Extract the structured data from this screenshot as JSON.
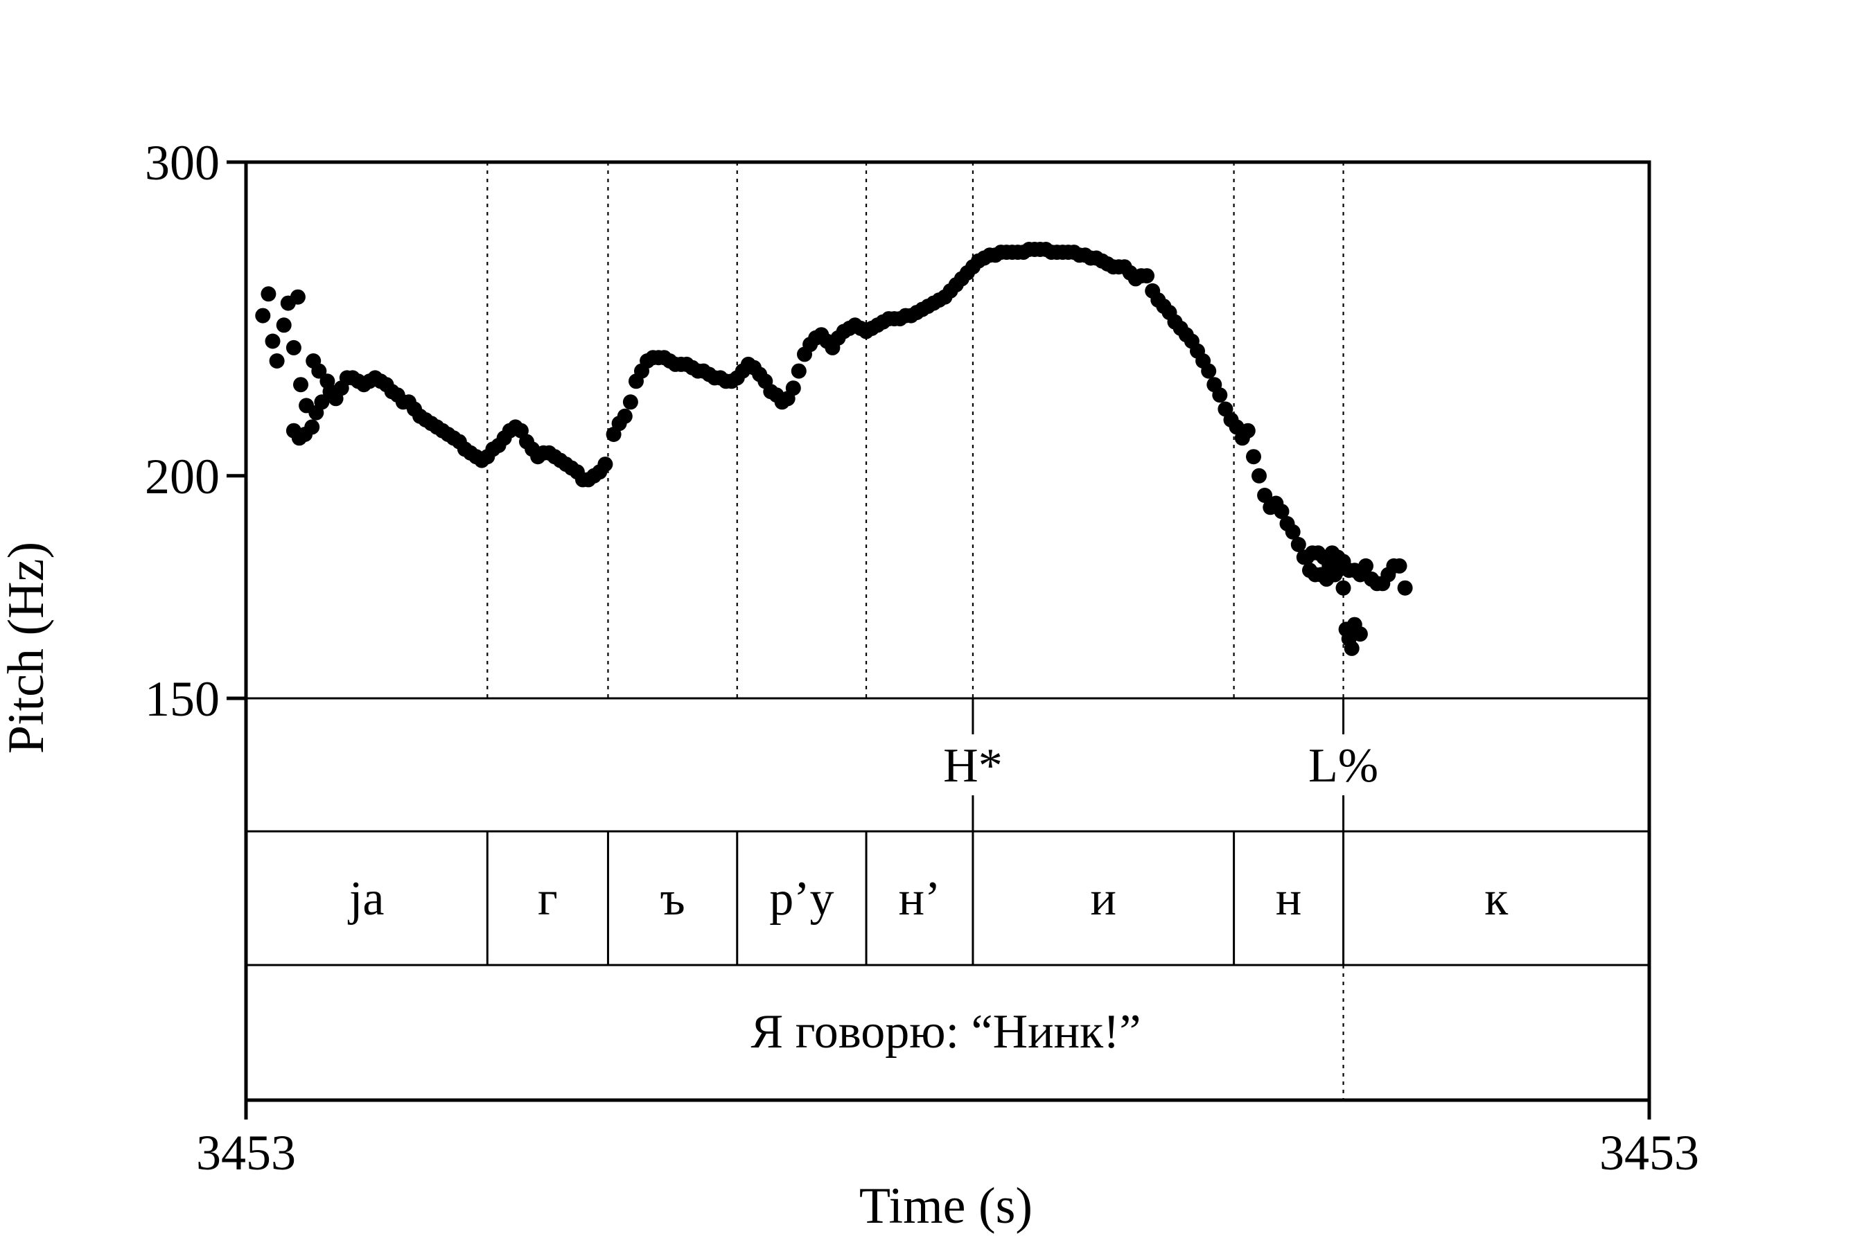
{
  "chart_data": {
    "type": "scatter",
    "xlabel": "Time (s)",
    "ylabel": "Pitch (Hz)",
    "x_tick_labels": [
      "3453",
      "3453"
    ],
    "ylim": [
      150,
      300
    ],
    "y_ticks": [
      150,
      200,
      300
    ],
    "y_tick_labels": [
      "150",
      "200",
      "300"
    ],
    "log_scale_y": true,
    "x_range_fraction": [
      0,
      1
    ],
    "boundaries": [
      0.172,
      0.258,
      0.35,
      0.442,
      0.518,
      0.704,
      0.782
    ],
    "tiers": {
      "tones": [
        {
          "label": "H*",
          "t": 0.518
        },
        {
          "label": "L%",
          "t": 0.782
        }
      ],
      "segments": [
        {
          "label": "ja",
          "start": 0.0,
          "end": 0.172
        },
        {
          "label": "г",
          "start": 0.172,
          "end": 0.258
        },
        {
          "label": "ъ",
          "start": 0.258,
          "end": 0.35
        },
        {
          "label": "р’у",
          "start": 0.35,
          "end": 0.442
        },
        {
          "label": "н’",
          "start": 0.442,
          "end": 0.518
        },
        {
          "label": "и",
          "start": 0.518,
          "end": 0.704
        },
        {
          "label": "н",
          "start": 0.704,
          "end": 0.782
        },
        {
          "label": "к",
          "start": 0.782,
          "end": 1.0
        }
      ],
      "phrase": {
        "label": "Я говорю: “Нинк!”",
        "start": 0.0,
        "end": 1.0
      }
    },
    "series": [
      {
        "points": [
          [
            0.012,
            246
          ],
          [
            0.016,
            253
          ],
          [
            0.019,
            238
          ],
          [
            0.022,
            232
          ],
          [
            0.027,
            243
          ],
          [
            0.03,
            250
          ],
          [
            0.034,
            236
          ],
          [
            0.037,
            252
          ],
          [
            0.039,
            225
          ],
          [
            0.043,
            219
          ],
          [
            0.048,
            232
          ],
          [
            0.052,
            229
          ],
          [
            0.058,
            226
          ],
          [
            0.034,
            212
          ],
          [
            0.038,
            210
          ],
          [
            0.042,
            211
          ],
          [
            0.047,
            213
          ],
          [
            0.05,
            217
          ],
          [
            0.054,
            220
          ],
          [
            0.06,
            223
          ],
          [
            0.064,
            221
          ],
          [
            0.068,
            224
          ],
          [
            0.072,
            227
          ],
          [
            0.076,
            227
          ],
          [
            0.08,
            226
          ],
          [
            0.084,
            225
          ],
          [
            0.088,
            226
          ],
          [
            0.092,
            227
          ],
          [
            0.096,
            226
          ],
          [
            0.1,
            225
          ],
          [
            0.104,
            223
          ],
          [
            0.108,
            222
          ],
          [
            0.112,
            220
          ],
          [
            0.116,
            220
          ],
          [
            0.12,
            218
          ],
          [
            0.124,
            216
          ],
          [
            0.128,
            215
          ],
          [
            0.132,
            214
          ],
          [
            0.136,
            213
          ],
          [
            0.14,
            212
          ],
          [
            0.144,
            211
          ],
          [
            0.148,
            210
          ],
          [
            0.152,
            209
          ],
          [
            0.156,
            207
          ],
          [
            0.16,
            206
          ],
          [
            0.164,
            205
          ],
          [
            0.168,
            204
          ],
          [
            0.172,
            205
          ],
          [
            0.176,
            207
          ],
          [
            0.18,
            208
          ],
          [
            0.184,
            210
          ],
          [
            0.188,
            212
          ],
          [
            0.192,
            213
          ],
          [
            0.196,
            212
          ],
          [
            0.2,
            209
          ],
          [
            0.204,
            207
          ],
          [
            0.208,
            205
          ],
          [
            0.212,
            206
          ],
          [
            0.216,
            206
          ],
          [
            0.22,
            205
          ],
          [
            0.224,
            204
          ],
          [
            0.228,
            203
          ],
          [
            0.232,
            202
          ],
          [
            0.236,
            201
          ],
          [
            0.24,
            199
          ],
          [
            0.244,
            199
          ],
          [
            0.248,
            200
          ],
          [
            0.252,
            201
          ],
          [
            0.256,
            203
          ],
          [
            0.262,
            211
          ],
          [
            0.266,
            214
          ],
          [
            0.27,
            216
          ],
          [
            0.274,
            220
          ],
          [
            0.278,
            226
          ],
          [
            0.282,
            229
          ],
          [
            0.286,
            232
          ],
          [
            0.29,
            233
          ],
          [
            0.294,
            233
          ],
          [
            0.298,
            233
          ],
          [
            0.302,
            232
          ],
          [
            0.306,
            231
          ],
          [
            0.31,
            231
          ],
          [
            0.314,
            231
          ],
          [
            0.318,
            230
          ],
          [
            0.322,
            229
          ],
          [
            0.326,
            229
          ],
          [
            0.33,
            228
          ],
          [
            0.334,
            227
          ],
          [
            0.338,
            227
          ],
          [
            0.342,
            226
          ],
          [
            0.346,
            226
          ],
          [
            0.35,
            227
          ],
          [
            0.354,
            229
          ],
          [
            0.358,
            231
          ],
          [
            0.362,
            230
          ],
          [
            0.366,
            228
          ],
          [
            0.37,
            226
          ],
          [
            0.374,
            223
          ],
          [
            0.378,
            222
          ],
          [
            0.382,
            220
          ],
          [
            0.386,
            221
          ],
          [
            0.39,
            224
          ],
          [
            0.394,
            229
          ],
          [
            0.398,
            234
          ],
          [
            0.402,
            237
          ],
          [
            0.406,
            239
          ],
          [
            0.41,
            240
          ],
          [
            0.414,
            238
          ],
          [
            0.418,
            236
          ],
          [
            0.422,
            239
          ],
          [
            0.426,
            241
          ],
          [
            0.43,
            242
          ],
          [
            0.434,
            243
          ],
          [
            0.438,
            242
          ],
          [
            0.442,
            241
          ],
          [
            0.446,
            242
          ],
          [
            0.45,
            243
          ],
          [
            0.454,
            244
          ],
          [
            0.458,
            245
          ],
          [
            0.462,
            245
          ],
          [
            0.466,
            245
          ],
          [
            0.47,
            246
          ],
          [
            0.474,
            246
          ],
          [
            0.478,
            247
          ],
          [
            0.482,
            248
          ],
          [
            0.486,
            249
          ],
          [
            0.49,
            250
          ],
          [
            0.494,
            251
          ],
          [
            0.498,
            252
          ],
          [
            0.502,
            254
          ],
          [
            0.506,
            256
          ],
          [
            0.51,
            258
          ],
          [
            0.514,
            260
          ],
          [
            0.518,
            262
          ],
          [
            0.522,
            264
          ],
          [
            0.526,
            265
          ],
          [
            0.53,
            266
          ],
          [
            0.534,
            266
          ],
          [
            0.538,
            267
          ],
          [
            0.542,
            267
          ],
          [
            0.546,
            267
          ],
          [
            0.55,
            267
          ],
          [
            0.554,
            267
          ],
          [
            0.558,
            268
          ],
          [
            0.562,
            268
          ],
          [
            0.566,
            268
          ],
          [
            0.57,
            268
          ],
          [
            0.574,
            267
          ],
          [
            0.578,
            267
          ],
          [
            0.582,
            267
          ],
          [
            0.586,
            267
          ],
          [
            0.59,
            267
          ],
          [
            0.594,
            266
          ],
          [
            0.598,
            266
          ],
          [
            0.602,
            265
          ],
          [
            0.606,
            265
          ],
          [
            0.61,
            264
          ],
          [
            0.614,
            263
          ],
          [
            0.618,
            262
          ],
          [
            0.622,
            262
          ],
          [
            0.626,
            262
          ],
          [
            0.63,
            260
          ],
          [
            0.634,
            258
          ],
          [
            0.638,
            259
          ],
          [
            0.642,
            259
          ],
          [
            0.646,
            254
          ],
          [
            0.65,
            251
          ],
          [
            0.654,
            249
          ],
          [
            0.658,
            247
          ],
          [
            0.662,
            244
          ],
          [
            0.666,
            242
          ],
          [
            0.67,
            240
          ],
          [
            0.674,
            238
          ],
          [
            0.678,
            235
          ],
          [
            0.682,
            232
          ],
          [
            0.686,
            229
          ],
          [
            0.69,
            225
          ],
          [
            0.694,
            222
          ],
          [
            0.698,
            218
          ],
          [
            0.702,
            215
          ],
          [
            0.706,
            213
          ],
          [
            0.71,
            210
          ],
          [
            0.714,
            212
          ],
          [
            0.718,
            205
          ],
          [
            0.722,
            200
          ],
          [
            0.726,
            195
          ],
          [
            0.73,
            192
          ],
          [
            0.734,
            193
          ],
          [
            0.738,
            191
          ],
          [
            0.742,
            188
          ],
          [
            0.746,
            186
          ],
          [
            0.75,
            183
          ],
          [
            0.754,
            180
          ],
          [
            0.758,
            177
          ],
          [
            0.762,
            176
          ],
          [
            0.766,
            176
          ],
          [
            0.77,
            175
          ],
          [
            0.774,
            176
          ],
          [
            0.778,
            177
          ],
          [
            0.782,
            178
          ],
          [
            0.786,
            177
          ],
          [
            0.79,
            177
          ],
          [
            0.794,
            176
          ],
          [
            0.798,
            178
          ],
          [
            0.802,
            175
          ],
          [
            0.806,
            174
          ],
          [
            0.81,
            174
          ],
          [
            0.814,
            176
          ],
          [
            0.818,
            178
          ],
          [
            0.822,
            178
          ],
          [
            0.826,
            173
          ],
          [
            0.774,
            181
          ],
          [
            0.778,
            180
          ],
          [
            0.782,
            179
          ],
          [
            0.756,
            180
          ],
          [
            0.76,
            181
          ],
          [
            0.764,
            181
          ],
          [
            0.768,
            180
          ],
          [
            0.772,
            178
          ],
          [
            0.776,
            176
          ],
          [
            0.782,
            173
          ],
          [
            0.786,
            162
          ],
          [
            0.79,
            165
          ],
          [
            0.794,
            163
          ],
          [
            0.788,
            160
          ],
          [
            0.784,
            164
          ]
        ]
      }
    ]
  }
}
